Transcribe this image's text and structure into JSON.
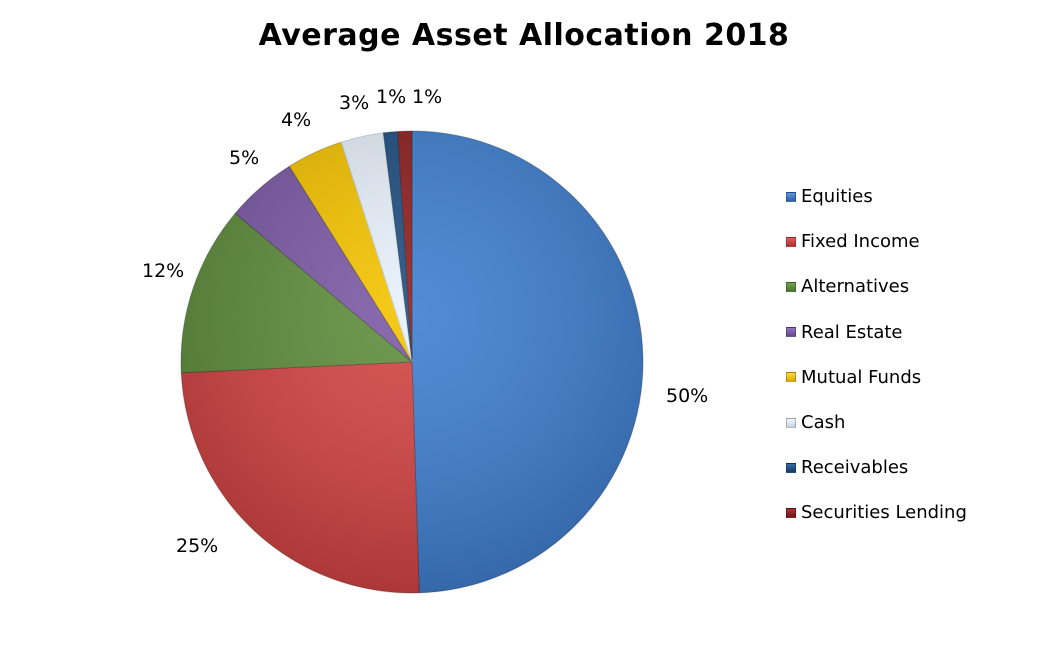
{
  "chart_data": {
    "type": "pie",
    "title": "Average Asset Allocation 2018",
    "categories": [
      "Equities",
      "Fixed Income",
      "Alternatives",
      "Real Estate",
      "Mutual Funds",
      "Cash",
      "Receivables",
      "Securities Lending"
    ],
    "values": [
      50,
      25,
      12,
      5,
      4,
      3,
      1,
      1
    ],
    "data_labels": [
      "50%",
      "25%",
      "12%",
      "5%",
      "4%",
      "3%",
      "1%",
      "1%"
    ],
    "colors": [
      "#3f7fcf",
      "#d24443",
      "#5f8d3c",
      "#7c5aa6",
      "#f5c400",
      "#e8f1fb",
      "#1f4e82",
      "#8e1f1f"
    ],
    "start_angle_deg": 0,
    "direction": "clockwise",
    "legend_position": "right",
    "xlabel": "",
    "ylabel": ""
  },
  "labels": {
    "title": "Average Asset Allocation 2018",
    "legend": [
      "Equities",
      "Fixed Income",
      "Alternatives",
      "Real Estate",
      "Mutual Funds",
      "Cash",
      "Receivables",
      "Securities Lending"
    ],
    "data": [
      "50%",
      "25%",
      "12%",
      "5%",
      "4%",
      "3%",
      "1%",
      "1%"
    ]
  }
}
